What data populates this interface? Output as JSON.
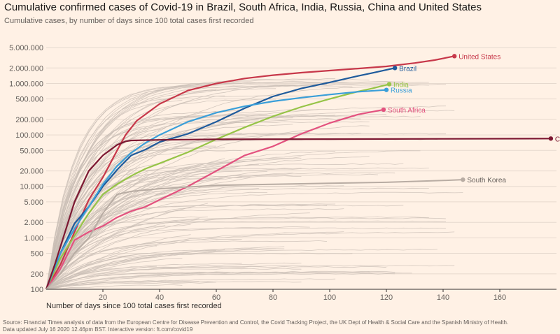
{
  "header": {
    "title": "Cumulative confirmed cases of Covid-19 in Brazil, South Africa, India, Russia, China and United States",
    "subtitle": "Cumulative cases, by number of days since 100 total cases first recorded"
  },
  "footer": {
    "source_line1": "Source: Financial Times analysis of data from the European Centre for Disease Prevention and Control, the Covid Tracking Project, the UK Dept of Health & Social Care and the Spanish Ministry of Health.",
    "source_line2": "Data updated July 16 2020 12.46pm BST. Interactive version: ft.com/covid19"
  },
  "chart_data": {
    "type": "line",
    "title": "Cumulative confirmed cases of Covid-19 in Brazil, South Africa, India, Russia, China and United States",
    "subtitle": "Cumulative cases, by number of days since 100 total cases first recorded",
    "xlabel": "Number of days since 100 total cases first recorded",
    "ylabel": "",
    "y_scale": "log",
    "xlim": [
      0,
      180
    ],
    "ylim": [
      100,
      5000000
    ],
    "x_ticks": [
      20,
      40,
      60,
      80,
      100,
      120,
      140,
      160
    ],
    "y_ticks": [
      100,
      200,
      500,
      1000,
      2000,
      5000,
      10000,
      20000,
      50000,
      100000,
      200000,
      500000,
      1000000,
      2000000,
      5000000
    ],
    "y_tick_labels": [
      "100",
      "200",
      "500",
      "1.000",
      "2.000",
      "5.000",
      "10.000",
      "20.000",
      "50.000",
      "100.000",
      "200.000",
      "500.000",
      "1.000.000",
      "2.000.000",
      "5.000.000"
    ],
    "grid": "horizontal",
    "background_color": "#fff1e5",
    "background_series_color": "#c9beb5",
    "highlighted_series": [
      {
        "name": "United States",
        "color": "#c7384a",
        "x": [
          0,
          5,
          10,
          15,
          20,
          25,
          28,
          32,
          40,
          50,
          60,
          70,
          80,
          90,
          100,
          110,
          120,
          130,
          137,
          144
        ],
        "y": [
          100,
          300,
          1300,
          5500,
          15000,
          50000,
          100000,
          190000,
          400000,
          730000,
          1000000,
          1250000,
          1450000,
          1620000,
          1780000,
          1950000,
          2150000,
          2500000,
          2850000,
          3400000
        ]
      },
      {
        "name": "Brazil",
        "color": "#1f5b9c",
        "x": [
          0,
          5,
          10,
          15,
          20,
          25,
          30,
          35,
          40,
          50,
          60,
          70,
          80,
          90,
          100,
          110,
          115,
          123
        ],
        "y": [
          100,
          500,
          1900,
          4000,
          10000,
          21000,
          40000,
          52000,
          73000,
          105000,
          180000,
          330000,
          560000,
          800000,
          1050000,
          1400000,
          1600000,
          2000000
        ]
      },
      {
        "name": "India",
        "color": "#96c447",
        "x": [
          0,
          5,
          10,
          15,
          20,
          25,
          30,
          35,
          40,
          50,
          60,
          70,
          80,
          90,
          100,
          110,
          115,
          121
        ],
        "y": [
          100,
          400,
          1100,
          3000,
          7000,
          11000,
          16000,
          22000,
          28000,
          46000,
          82000,
          140000,
          230000,
          350000,
          500000,
          700000,
          800000,
          970000
        ]
      },
      {
        "name": "Russia",
        "color": "#3a9fd9",
        "x": [
          0,
          5,
          10,
          15,
          20,
          25,
          30,
          35,
          40,
          50,
          60,
          70,
          80,
          90,
          100,
          110,
          120
        ],
        "y": [
          100,
          500,
          1500,
          4000,
          11000,
          25000,
          45000,
          70000,
          100000,
          180000,
          270000,
          360000,
          450000,
          530000,
          610000,
          690000,
          750000
        ]
      },
      {
        "name": "South Africa",
        "color": "#e3527f",
        "x": [
          0,
          5,
          10,
          15,
          20,
          25,
          30,
          35,
          40,
          50,
          60,
          70,
          80,
          90,
          100,
          110,
          119
        ],
        "y": [
          100,
          250,
          900,
          1300,
          1700,
          2500,
          3300,
          4000,
          5500,
          10000,
          20000,
          40000,
          60000,
          105000,
          170000,
          250000,
          310000
        ]
      },
      {
        "name": "China",
        "color": "#7d1832",
        "x": [
          0,
          3,
          6,
          10,
          15,
          20,
          25,
          28,
          30,
          40,
          60,
          100,
          140,
          178
        ],
        "y": [
          100,
          300,
          1000,
          5000,
          20000,
          40000,
          64000,
          75000,
          78000,
          80000,
          82000,
          83000,
          84000,
          85000
        ]
      },
      {
        "name": "South Korea",
        "color": "#b8aca3",
        "x": [
          0,
          5,
          10,
          15,
          20,
          25,
          30,
          40,
          60,
          80,
          100,
          120,
          140,
          147
        ],
        "y": [
          100,
          200,
          500,
          1000,
          3000,
          7000,
          8000,
          9000,
          10500,
          11000,
          11500,
          12000,
          13000,
          13500
        ]
      }
    ],
    "background_series_note": ""
  }
}
